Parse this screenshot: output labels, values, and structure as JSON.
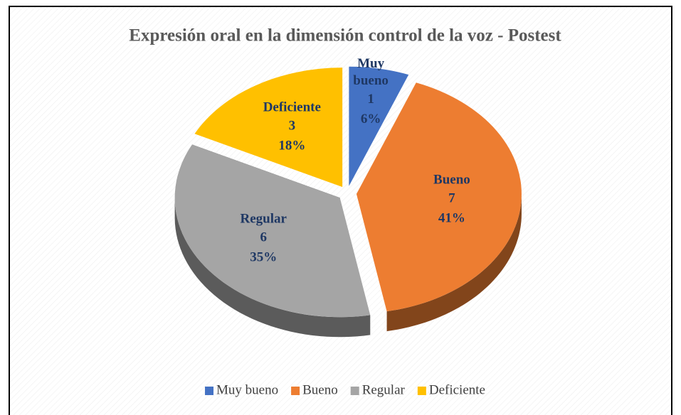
{
  "chart_data": {
    "type": "pie3d",
    "title": "Expresión oral en la dimensión control de la voz - Postest",
    "categories": [
      "Muy bueno",
      "Bueno",
      "Regular",
      "Deficiente"
    ],
    "values": [
      1,
      7,
      6,
      3
    ],
    "percent_labels": [
      "6%",
      "41%",
      "35%",
      "18%"
    ],
    "colors": [
      "#4472c4",
      "#ed7d31",
      "#a5a5a5",
      "#ffc000"
    ],
    "legend": "bottom"
  }
}
